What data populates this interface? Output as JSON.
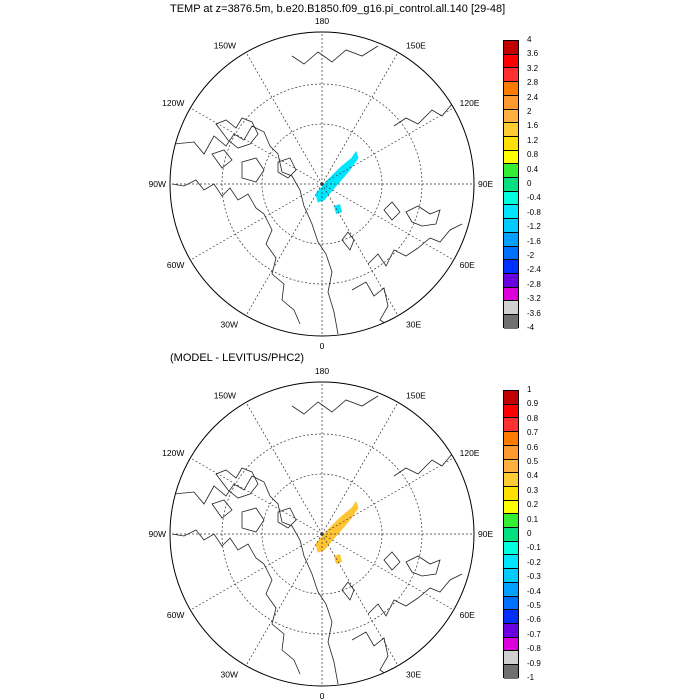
{
  "panels": [
    {
      "title": "TEMP at z=3876.5m, b.e20.B1850.f09_g16.pi_control.all.140 [29-48]",
      "lon_labels": {
        "top": "180",
        "bottom": "0",
        "left": "90W",
        "right": "90E",
        "ul1": "150W",
        "ul2": "120W",
        "ll1": "60W",
        "ll2": "30W",
        "ur1": "150E",
        "ur2": "120E",
        "lr1": "60E",
        "lr2": "30E"
      },
      "anomaly_color": "#00e6ff",
      "colorbar": {
        "labels": [
          "4",
          "3.6",
          "3.2",
          "2.8",
          "2.4",
          "2",
          "1.6",
          "1.2",
          "0.8",
          "0.4",
          "0",
          "-0.4",
          "-0.8",
          "-1.2",
          "-1.6",
          "-2",
          "-2.4",
          "-2.8",
          "-3.2",
          "-3.6",
          "-4"
        ],
        "colors": [
          "#c00000",
          "#ff0000",
          "#ff3030",
          "#ff7b00",
          "#ff9a30",
          "#ffb040",
          "#ffcc33",
          "#ffe000",
          "#ffff00",
          "#33ee33",
          "#00e080",
          "#00ffdd",
          "#00e6ff",
          "#00ccff",
          "#00a0ff",
          "#0070ff",
          "#0030ff",
          "#6a00e0",
          "#dd00dd",
          "#d0d0d0",
          "#707070"
        ]
      }
    },
    {
      "title": "(MODEL - LEVITUS/PHC2)",
      "lon_labels": {
        "top": "180",
        "bottom": "0",
        "left": "90W",
        "right": "90E",
        "ul1": "150W",
        "ul2": "120W",
        "ll1": "60W",
        "ll2": "30W",
        "ur1": "150E",
        "ur2": "120E",
        "lr1": "60E",
        "lr2": "30E"
      },
      "anomaly_color": "#ffc433",
      "colorbar": {
        "labels": [
          "1",
          "0.9",
          "0.8",
          "0.7",
          "0.6",
          "0.5",
          "0.4",
          "0.3",
          "0.2",
          "0.1",
          "0",
          "-0.1",
          "-0.2",
          "-0.3",
          "-0.4",
          "-0.5",
          "-0.6",
          "-0.7",
          "-0.8",
          "-0.9",
          "-1"
        ],
        "colors": [
          "#c00000",
          "#ff0000",
          "#ff3030",
          "#ff7b00",
          "#ff9a30",
          "#ffb040",
          "#ffcc33",
          "#ffe000",
          "#ffff00",
          "#33ee33",
          "#00e080",
          "#00ffdd",
          "#00e6ff",
          "#00ccff",
          "#00a0ff",
          "#0070ff",
          "#0030ff",
          "#6a00e0",
          "#dd00dd",
          "#d0d0d0",
          "#707070"
        ]
      }
    }
  ]
}
